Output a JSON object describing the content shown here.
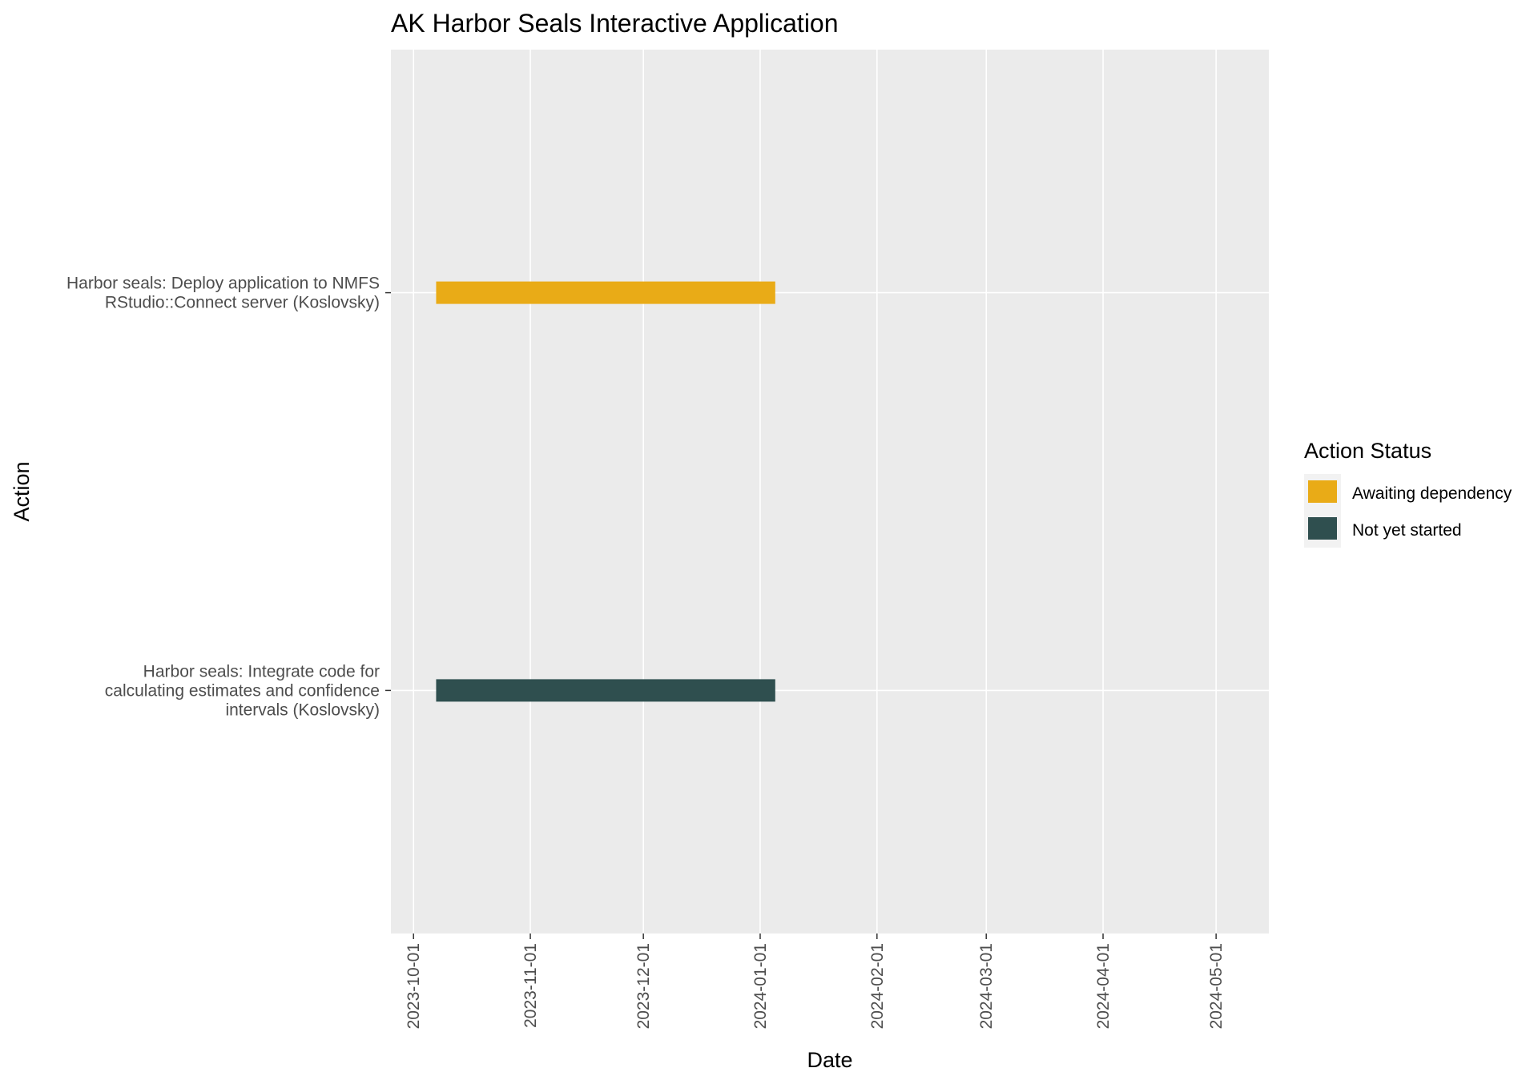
{
  "chart_data": {
    "type": "gantt",
    "title": "AK Harbor Seals Interactive Application",
    "xlabel": "Date",
    "ylabel": "Action",
    "x_ticks": [
      "2023-10-01",
      "2023-11-01",
      "2023-12-01",
      "2024-01-01",
      "2024-02-01",
      "2024-03-01",
      "2024-04-01",
      "2024-05-01"
    ],
    "xlim": [
      "2023-09-25",
      "2024-05-15"
    ],
    "grid": true,
    "legend": {
      "title": "Action Status",
      "position": "right",
      "entries": [
        {
          "label": "Awaiting dependency",
          "color": "#E9AB17"
        },
        {
          "label": "Not yet started",
          "color": "#2F4F4F"
        }
      ]
    },
    "tasks": [
      {
        "label_lines": [
          "Harbor seals: Deploy application to NMFS",
          "RStudio::Connect server (Koslovsky)"
        ],
        "start": "2023-10-07",
        "end": "2024-01-05",
        "status": "Awaiting dependency"
      },
      {
        "label_lines": [
          "Harbor seals: Integrate code for",
          "calculating estimates and confidence",
          "intervals (Koslovsky)"
        ],
        "start": "2023-10-07",
        "end": "2024-01-05",
        "status": "Not yet started"
      }
    ],
    "colors": {
      "panel_background": "#EBEBEB",
      "grid": "#FFFFFF",
      "tick_text": "#4D4D4D",
      "awaiting": "#E9AB17",
      "not_started": "#2F4F4F"
    }
  }
}
